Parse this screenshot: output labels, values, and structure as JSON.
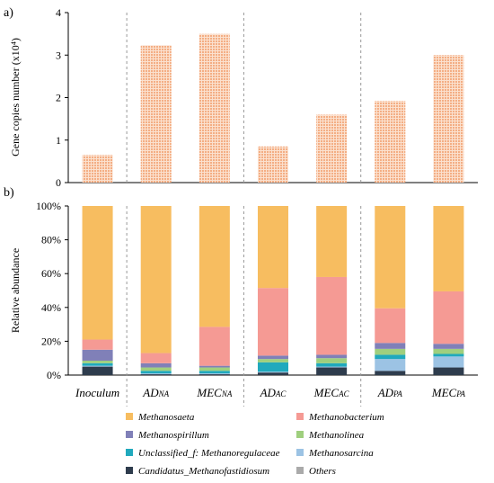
{
  "chart_data": [
    {
      "panel": "a)",
      "type": "bar",
      "pattern": "dotted",
      "color": "#f4a77a",
      "categories": [
        {
          "main": "Inoculum",
          "sub": ""
        },
        {
          "main": "AD",
          "sub": "NA"
        },
        {
          "main": "MEC",
          "sub": "NA"
        },
        {
          "main": "AD",
          "sub": "AC"
        },
        {
          "main": "MEC",
          "sub": "AC"
        },
        {
          "main": "AD",
          "sub": "PA"
        },
        {
          "main": "MEC",
          "sub": "PA"
        }
      ],
      "values": [
        0.65,
        3.23,
        3.5,
        0.85,
        1.6,
        1.92,
        3.0
      ],
      "ylabel": "Gene copies number (x10⁴)",
      "ylim": [
        0,
        4
      ],
      "yticks": [
        "0",
        "1",
        "2",
        "3",
        "4"
      ],
      "group_separators": "dashed"
    },
    {
      "panel": "b)",
      "type": "bar",
      "stacked": true,
      "categories": [
        {
          "main": "Inoculum",
          "sub": ""
        },
        {
          "main": "AD",
          "sub": "NA"
        },
        {
          "main": "MEC",
          "sub": "NA"
        },
        {
          "main": "AD",
          "sub": "AC"
        },
        {
          "main": "MEC",
          "sub": "AC"
        },
        {
          "main": "AD",
          "sub": "PA"
        },
        {
          "main": "MEC",
          "sub": "PA"
        }
      ],
      "ylabel": "Relative abundance",
      "ylim": [
        0,
        100
      ],
      "yticks": [
        "0%",
        "20%",
        "40%",
        "60%",
        "80%",
        "100%"
      ],
      "series": [
        {
          "name": "Candidatus_Methanofastidiosum",
          "color": "#2e3c4d",
          "values": [
            5.0,
            0.5,
            0.5,
            1.5,
            4.5,
            2.5,
            4.5
          ]
        },
        {
          "name": "Methanosarcina",
          "color": "#9cc3e4",
          "values": [
            0.5,
            0.5,
            0.5,
            0.5,
            0.5,
            7.0,
            6.5
          ]
        },
        {
          "name": "Unclassified_f: Methanoregulaceae",
          "color": "#20a9bd",
          "values": [
            1.5,
            1.5,
            1.5,
            5.5,
            2.0,
            2.5,
            1.5
          ]
        },
        {
          "name": "Methanolinea",
          "color": "#9fcf7e",
          "values": [
            1.5,
            2.0,
            2.0,
            2.0,
            3.0,
            3.5,
            3.0
          ]
        },
        {
          "name": "Methanospirillum",
          "color": "#8080b8",
          "values": [
            6.5,
            2.5,
            1.0,
            2.0,
            2.0,
            3.5,
            3.0
          ]
        },
        {
          "name": "Methanobacterium",
          "color": "#f59a94",
          "values": [
            6.0,
            6.0,
            23.0,
            40.0,
            46.0,
            20.5,
            31.0
          ]
        },
        {
          "name": "Others",
          "color": "#aaaaaa",
          "values": [
            0,
            0,
            0,
            0,
            0,
            0,
            0
          ]
        },
        {
          "name": "Methanosaeta",
          "color": "#f7bd60",
          "values": [
            79.0,
            87.0,
            71.5,
            48.5,
            42.0,
            60.5,
            50.5
          ]
        }
      ],
      "legend": [
        "Methanosaeta",
        "Methanobacterium",
        "Methanospirillum",
        "Methanolinea",
        "Unclassified_f: Methanoregulaceae",
        "Methanosarcina",
        "Candidatus_Methanofastidiosum",
        "Others"
      ],
      "legend_position": "bottom",
      "group_separators": "dashed"
    }
  ]
}
